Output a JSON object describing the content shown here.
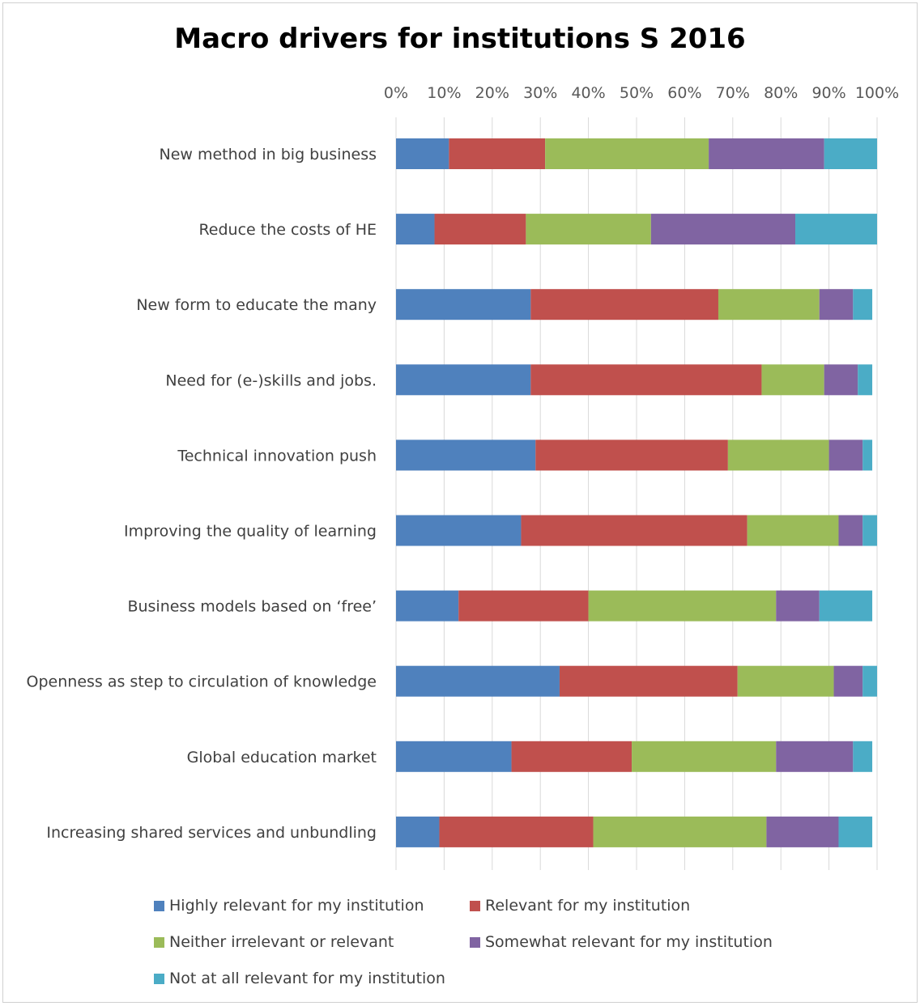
{
  "chart_data": {
    "type": "bar",
    "orientation": "horizontal",
    "stacked": "percent",
    "title": "Macro drivers for institutions S 2016",
    "xlim": [
      0,
      100
    ],
    "x_ticks": [
      "0%",
      "10%",
      "20%",
      "30%",
      "40%",
      "50%",
      "60%",
      "70%",
      "80%",
      "90%",
      "100%"
    ],
    "x_tick_values": [
      0,
      10,
      20,
      30,
      40,
      50,
      60,
      70,
      80,
      90,
      100
    ],
    "grid": "vertical",
    "legend_position": "bottom",
    "categories": [
      "New method in big business",
      "Reduce the costs of HE",
      "New form to educate the many",
      "Need for (e-)skills and jobs.",
      "Technical innovation push",
      "Improving the quality of learning",
      "Business models based on ‘free’",
      "Openness as step to circulation of knowledge",
      "Global education market",
      "Increasing shared services and unbundling"
    ],
    "series": [
      {
        "name": "Highly relevant for my institution",
        "color": "#4f81bd",
        "values": [
          11,
          8,
          28,
          28,
          29,
          26,
          13,
          34,
          24,
          9
        ]
      },
      {
        "name": "Relevant for my institution",
        "color": "#c0504d",
        "values": [
          20,
          19,
          39,
          48,
          40,
          47,
          27,
          37,
          25,
          32
        ]
      },
      {
        "name": "Neither irrelevant or relevant",
        "color": "#9bbb59",
        "values": [
          34,
          26,
          21,
          13,
          21,
          19,
          39,
          20,
          30,
          36
        ]
      },
      {
        "name": "Somewhat relevant for my institution",
        "color": "#8064a2",
        "values": [
          24,
          30,
          7,
          7,
          7,
          5,
          9,
          6,
          16,
          15
        ]
      },
      {
        "name": "Not at all relevant for my institution",
        "color": "#4bacc6",
        "values": [
          11,
          17,
          4,
          3,
          2,
          3,
          11,
          3,
          4,
          7
        ]
      }
    ]
  }
}
